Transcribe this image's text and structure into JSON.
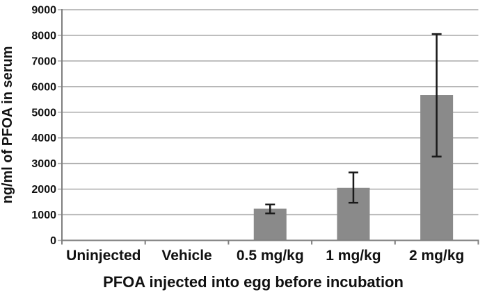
{
  "chart_data": {
    "type": "bar",
    "title": "",
    "xlabel": "PFOA injected into egg before incubation",
    "ylabel": "ng/ml of PFOA in serum",
    "categories": [
      "Uninjected",
      "Vehicle",
      "0.5 mg/kg",
      "1 mg/kg",
      "2 mg/kg"
    ],
    "values": [
      0,
      0,
      1240,
      2050,
      5670
    ],
    "error_bars": {
      "low": [
        null,
        null,
        1050,
        1470,
        3270
      ],
      "high": [
        null,
        null,
        1400,
        2650,
        8050
      ]
    },
    "ylim": [
      0,
      9000
    ],
    "yticks": [
      0,
      1000,
      2000,
      3000,
      4000,
      5000,
      6000,
      7000,
      8000,
      9000
    ],
    "grid": true,
    "legend": "none",
    "colors": {
      "bar": "#8a8a8a",
      "error": "#1a1a1a",
      "grid": "#a9a9a9",
      "axis": "#7f7f7f",
      "text": "#111111"
    }
  }
}
